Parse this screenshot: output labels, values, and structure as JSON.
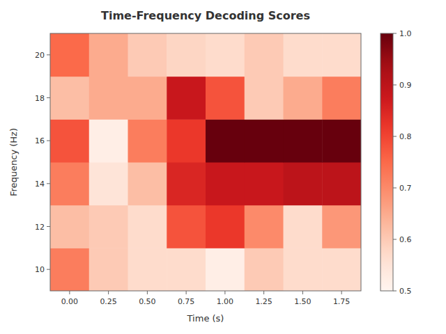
{
  "chart_data": {
    "type": "heatmap",
    "title": "Time-Frequency Decoding Scores",
    "x_label": "Time (s)",
    "y_label": "Frequency (Hz)",
    "x": [
      0.0,
      0.25,
      0.5,
      0.75,
      1.0,
      1.25,
      1.5,
      1.75
    ],
    "y": [
      10,
      12,
      14,
      16,
      18,
      20
    ],
    "xlim": [
      -0.125,
      1.875
    ],
    "ylim": [
      9,
      21
    ],
    "xticks": [
      {
        "value": 0.0,
        "label": "0.00"
      },
      0.25,
      {
        "value": 0.5,
        "label": "0.50"
      },
      0.75,
      {
        "value": 1.0,
        "label": "1.00"
      },
      1.25,
      {
        "value": 1.5,
        "label": "1.50"
      },
      1.75
    ],
    "yticks": [
      10,
      12,
      14,
      16,
      18,
      20
    ],
    "values": [
      [
        0.72,
        0.6,
        0.57,
        0.57,
        0.52,
        0.6,
        0.57,
        0.57
      ],
      [
        0.62,
        0.6,
        0.57,
        0.78,
        0.82,
        0.7,
        0.57,
        0.68
      ],
      [
        0.72,
        0.55,
        0.62,
        0.85,
        0.88,
        0.88,
        0.9,
        0.9
      ],
      [
        0.78,
        0.52,
        0.72,
        0.82,
        1.0,
        1.0,
        1.0,
        1.0
      ],
      [
        0.62,
        0.65,
        0.65,
        0.88,
        0.78,
        0.6,
        0.65,
        0.72
      ],
      [
        0.75,
        0.65,
        0.6,
        0.58,
        0.57,
        0.6,
        0.57,
        0.57
      ]
    ],
    "color": "Reds",
    "colorbar_range": [
      0.5,
      1.0
    ],
    "colorbar_ticks": [
      0.5,
      0.6,
      0.7,
      0.8,
      0.9,
      {
        "value": 1.0,
        "label": "1.0"
      }
    ],
    "grid": false
  }
}
